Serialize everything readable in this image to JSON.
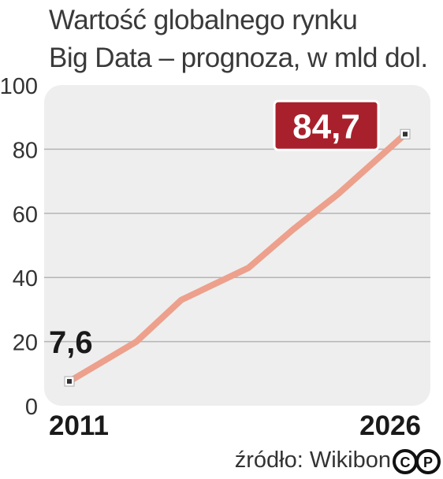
{
  "title": [
    "Wartość globalnego rynku",
    "Big Data – prognoza, w mld dol."
  ],
  "source": "źródło: Wikibon",
  "logo": {
    "name": "copyright-pap-logo",
    "text": "CP"
  },
  "colors": {
    "plot_bg": "#eeeeee",
    "grid": "#b5b5b5",
    "line": "#eda08c",
    "badge": "#a8202c",
    "badge_border": "#ffffff"
  },
  "chart_data": {
    "type": "line",
    "title": "Wartość globalnego rynku Big Data – prognoza, w mld dol.",
    "x_ticks": [
      "2011",
      "2026"
    ],
    "y_ticks": [
      "0",
      "20",
      "40",
      "60",
      "80",
      "100"
    ],
    "ylim": [
      0,
      100
    ],
    "xlim": [
      2011,
      2026
    ],
    "grid": true,
    "series": [
      {
        "x": [
          2011,
          2014,
          2016,
          2019,
          2021,
          2023,
          2026
        ],
        "y": [
          7.6,
          20.0,
          33.0,
          43.0,
          55.0,
          66.0,
          84.7
        ]
      }
    ],
    "labels": {
      "start": "7,6",
      "end": "84,7"
    }
  }
}
